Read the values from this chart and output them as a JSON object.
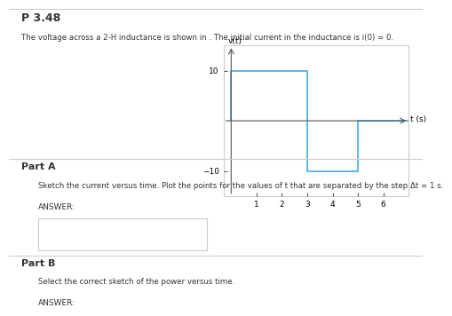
{
  "title": "P 3.48",
  "description": "The voltage across a 2-H inductance is shown in . The initial current in the inductance is i(0) = 0.",
  "graph_label_y": "v(t)",
  "graph_label_x": "t (s)",
  "x_ticks": [
    1,
    2,
    3,
    4,
    5,
    6
  ],
  "y_ticks": [
    -10,
    10
  ],
  "step_wave_x": [
    0,
    0,
    3,
    3,
    5,
    5,
    7
  ],
  "step_wave_y": [
    0,
    10,
    10,
    -10,
    -10,
    0,
    0
  ],
  "line_color": "#5bb8e8",
  "bg_color": "#ffffff",
  "plot_bg": "#ffffff",
  "part_a_title": "Part A",
  "part_a_text": "Sketch the current versus time. Plot the points for the values of t that are separated by the step Δt = 1 s.",
  "part_a_answer": "ANSWER:",
  "part_b_title": "Part B",
  "part_b_text": "Select the correct sketch of the power versus time.",
  "part_b_answer": "ANSWER:",
  "ylim": [
    -15,
    15
  ],
  "xlim": [
    -0.3,
    7.0
  ],
  "graph_border_color": "#cccccc",
  "divider_color": "#cccccc",
  "text_color": "#333333"
}
